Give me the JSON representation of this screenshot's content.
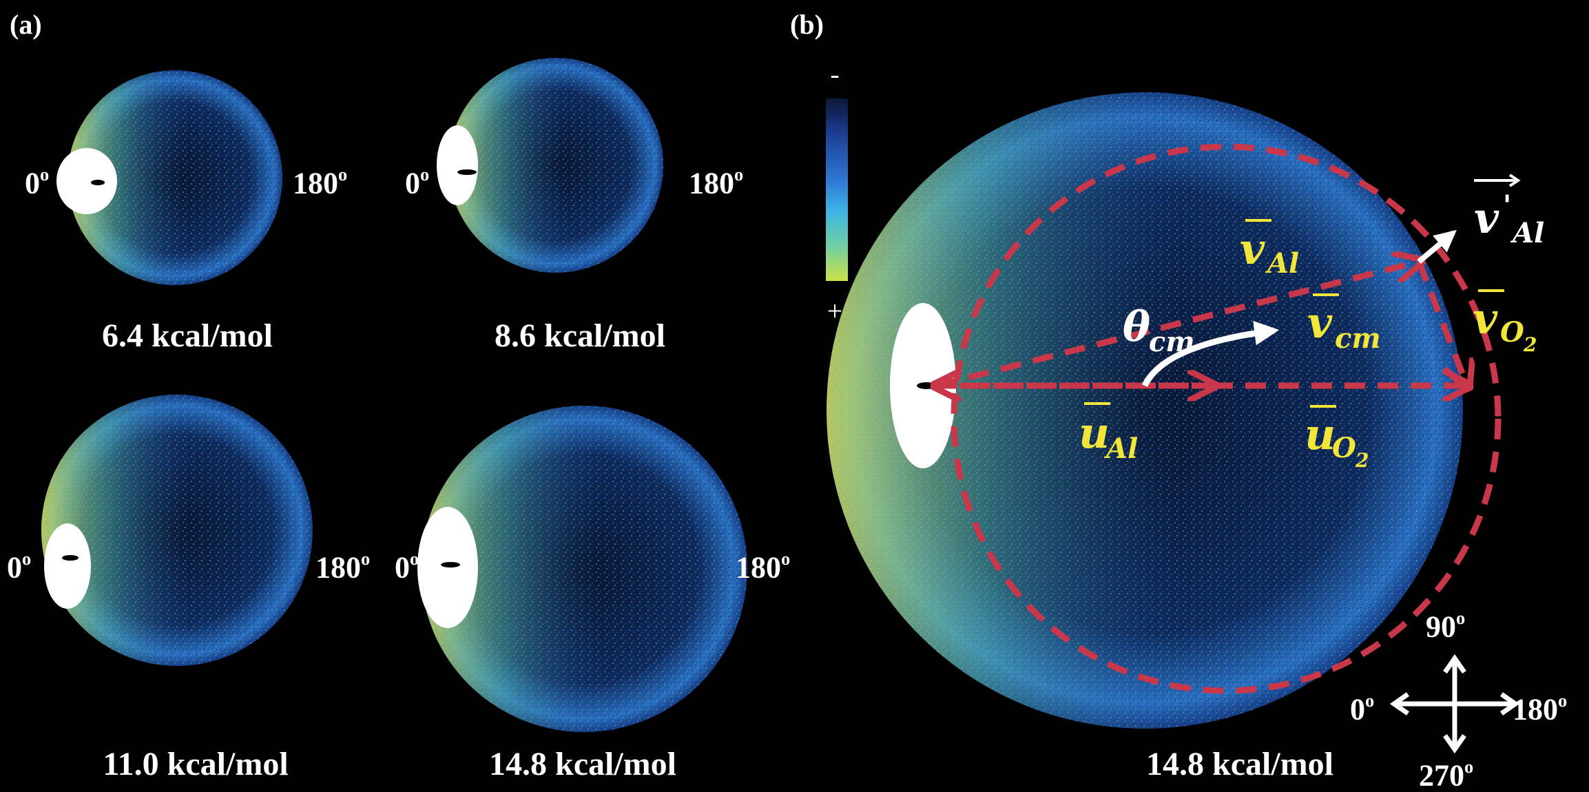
{
  "panel_a": {
    "label": "(a)",
    "images": [
      {
        "energy": "6.4 kcal/mol",
        "left_angle": "0",
        "right_angle": "180"
      },
      {
        "energy": "8.6 kcal/mol",
        "left_angle": "0",
        "right_angle": "180"
      },
      {
        "energy": "11.0 kcal/mol",
        "left_angle": "0",
        "right_angle": "180"
      },
      {
        "energy": "14.8 kcal/mol",
        "left_angle": "0",
        "right_angle": "180"
      }
    ],
    "degree_symbol": "o"
  },
  "colorbar": {
    "top_label": "-",
    "bottom_label": "+",
    "colors": [
      "#0c1638",
      "#1c3f96",
      "#2f78d4",
      "#3fb4e6",
      "#6ccda6",
      "#cfe24a"
    ]
  },
  "panel_b": {
    "label": "(b)",
    "energy": "14.8 kcal/mol",
    "vectors": {
      "v_Al": {
        "main": "v",
        "sub": "Al"
      },
      "v_cm": {
        "main": "v",
        "sub": "cm"
      },
      "v_O2": {
        "main": "v",
        "sub": "O",
        "subsub": "2"
      },
      "u_Al": {
        "main": "u",
        "sub": "Al"
      },
      "u_O2": {
        "main": "u",
        "sub": "O",
        "subsub": "2"
      },
      "v_prime_Al": {
        "main": "v",
        "prime": "'",
        "sub": "Al"
      },
      "theta_cm": {
        "main": "θ",
        "sub": "cm"
      }
    },
    "compass": {
      "top": "90",
      "left": "0",
      "right": "180",
      "bottom": "270"
    },
    "colors": {
      "dashed": "#c8384a",
      "vector_text": "#f2e63a",
      "white_text": "#ffffff"
    }
  }
}
